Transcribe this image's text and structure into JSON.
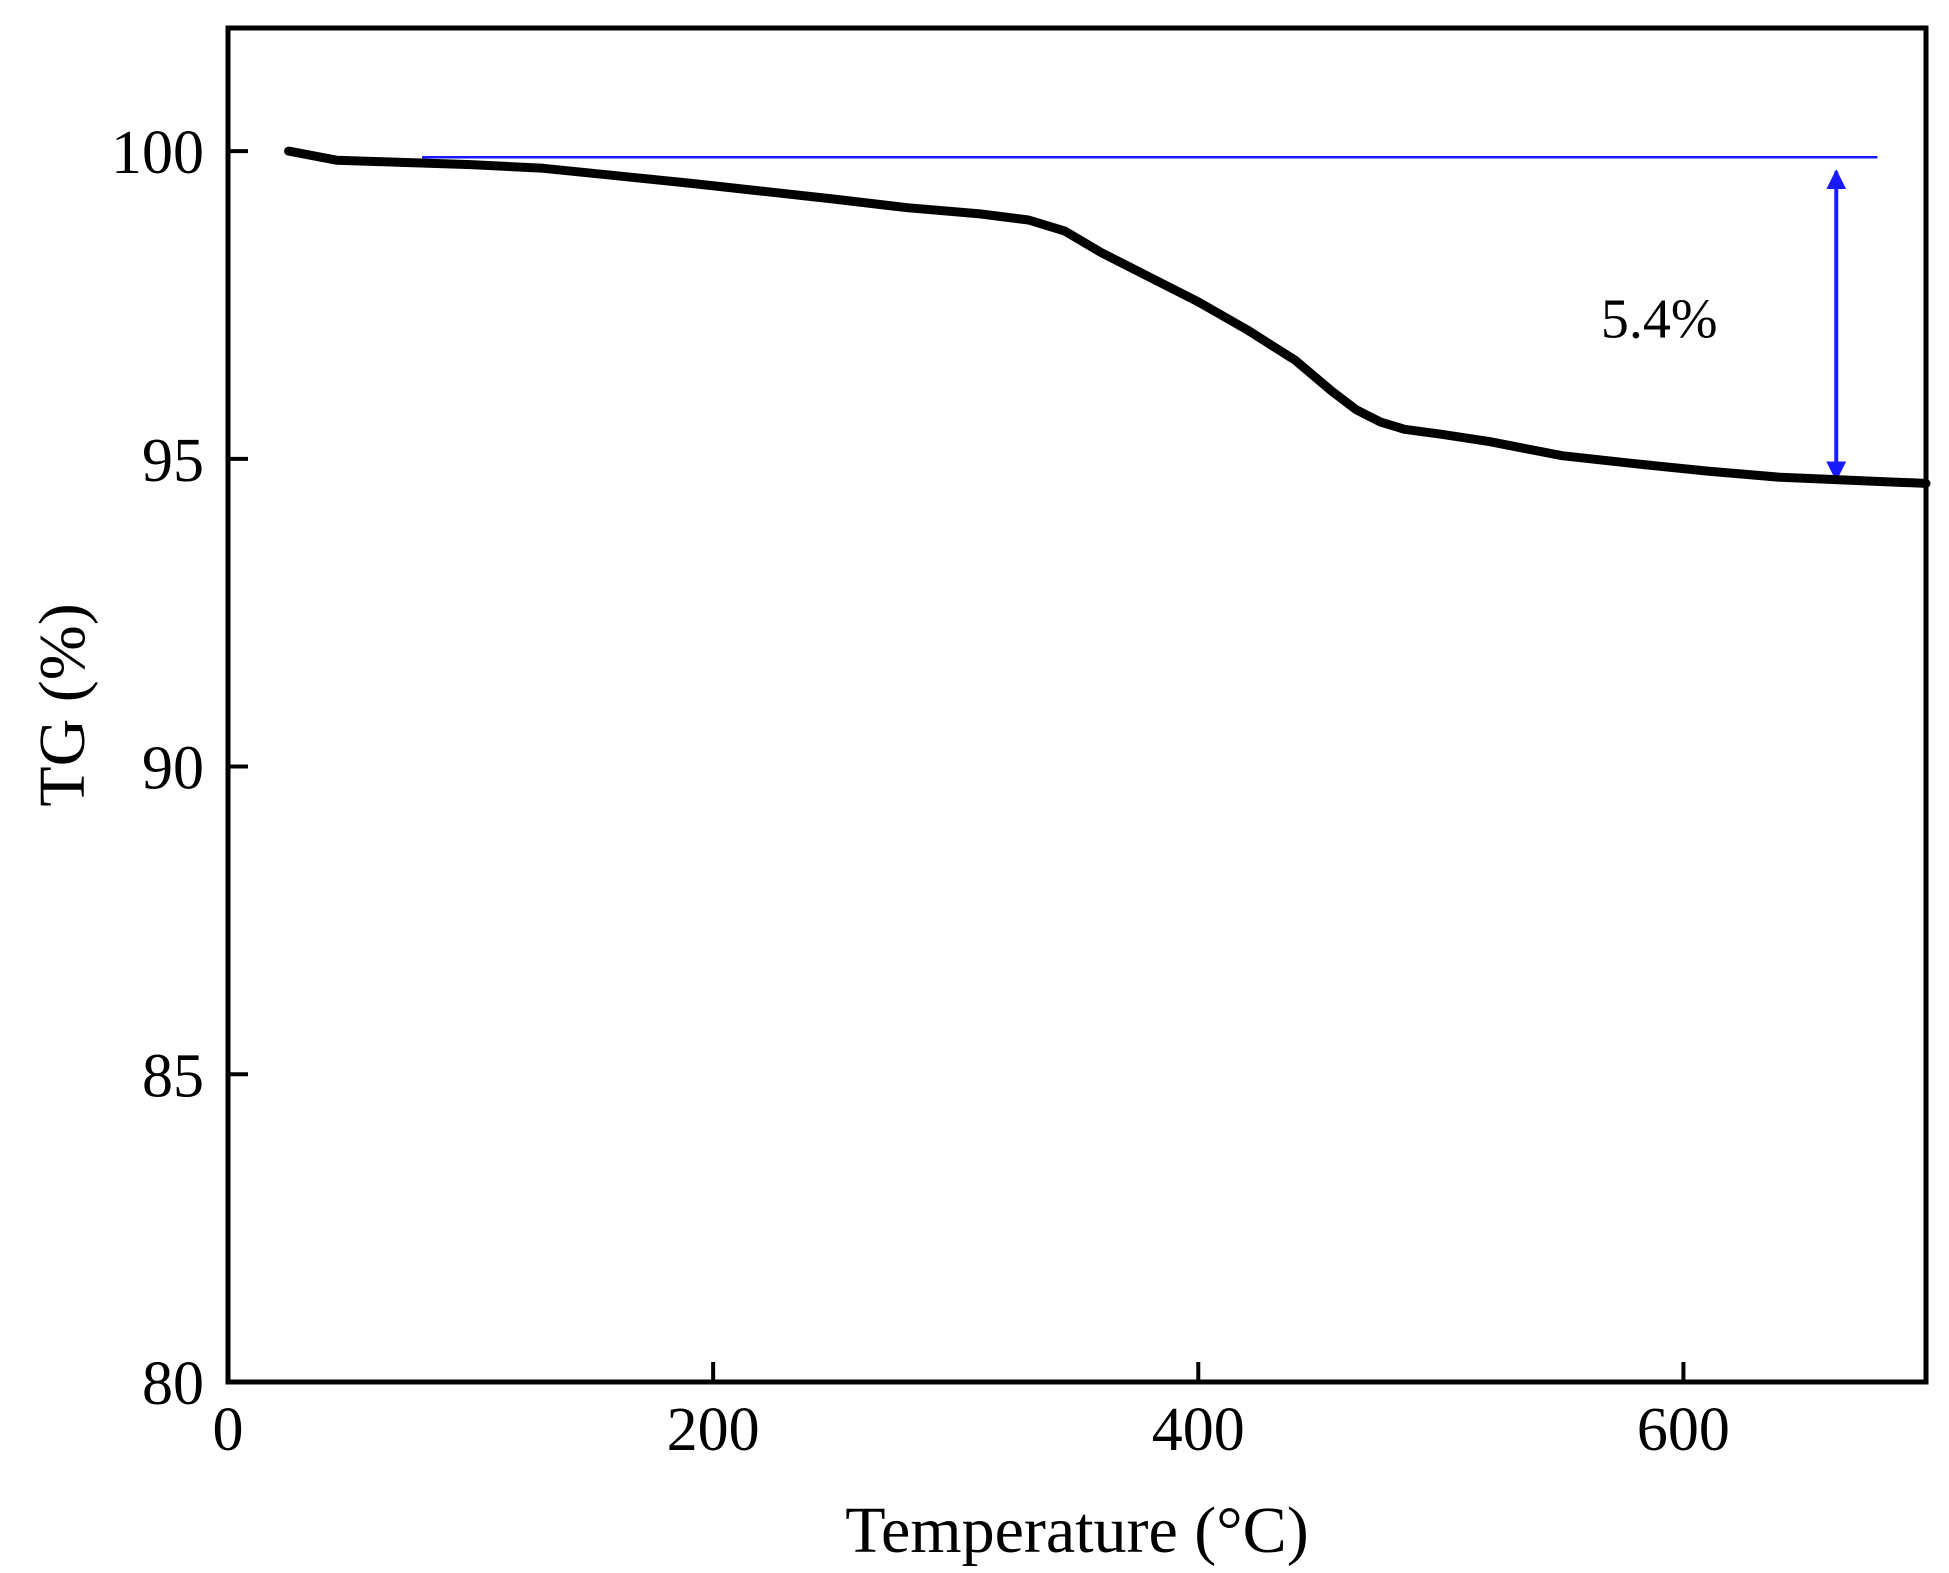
{
  "chart_data": {
    "type": "line",
    "xlabel": "Temperature (°C)",
    "ylabel": "TG (%)",
    "xlim": [
      0,
      700
    ],
    "ylim": [
      80,
      102
    ],
    "xticks": [
      0,
      200,
      400,
      600
    ],
    "yticks": [
      80,
      85,
      90,
      95,
      100
    ],
    "grid": false,
    "series": [
      {
        "color": "#000000",
        "x": [
          25,
          45,
          70,
          100,
          130,
          160,
          190,
          220,
          250,
          280,
          310,
          330,
          345,
          360,
          380,
          400,
          420,
          440,
          455,
          465,
          475,
          485,
          500,
          520,
          550,
          580,
          610,
          640,
          670,
          700
        ],
        "y": [
          100.0,
          99.85,
          99.82,
          99.78,
          99.72,
          99.6,
          99.48,
          99.35,
          99.22,
          99.08,
          98.98,
          98.88,
          98.7,
          98.35,
          97.95,
          97.55,
          97.1,
          96.6,
          96.1,
          95.8,
          95.6,
          95.48,
          95.4,
          95.28,
          95.05,
          94.92,
          94.8,
          94.7,
          94.65,
          94.6
        ]
      }
    ],
    "annotations": {
      "reference_line": {
        "y": 99.9,
        "x_start": 80,
        "x_end": 680,
        "color": "#1a1aff"
      },
      "arrow": {
        "x": 663,
        "y_top": 99.9,
        "y_bottom": 94.6,
        "color": "#1a1aff"
      },
      "label": {
        "text": "5.4%",
        "x": 590,
        "y": 97.3
      }
    }
  }
}
